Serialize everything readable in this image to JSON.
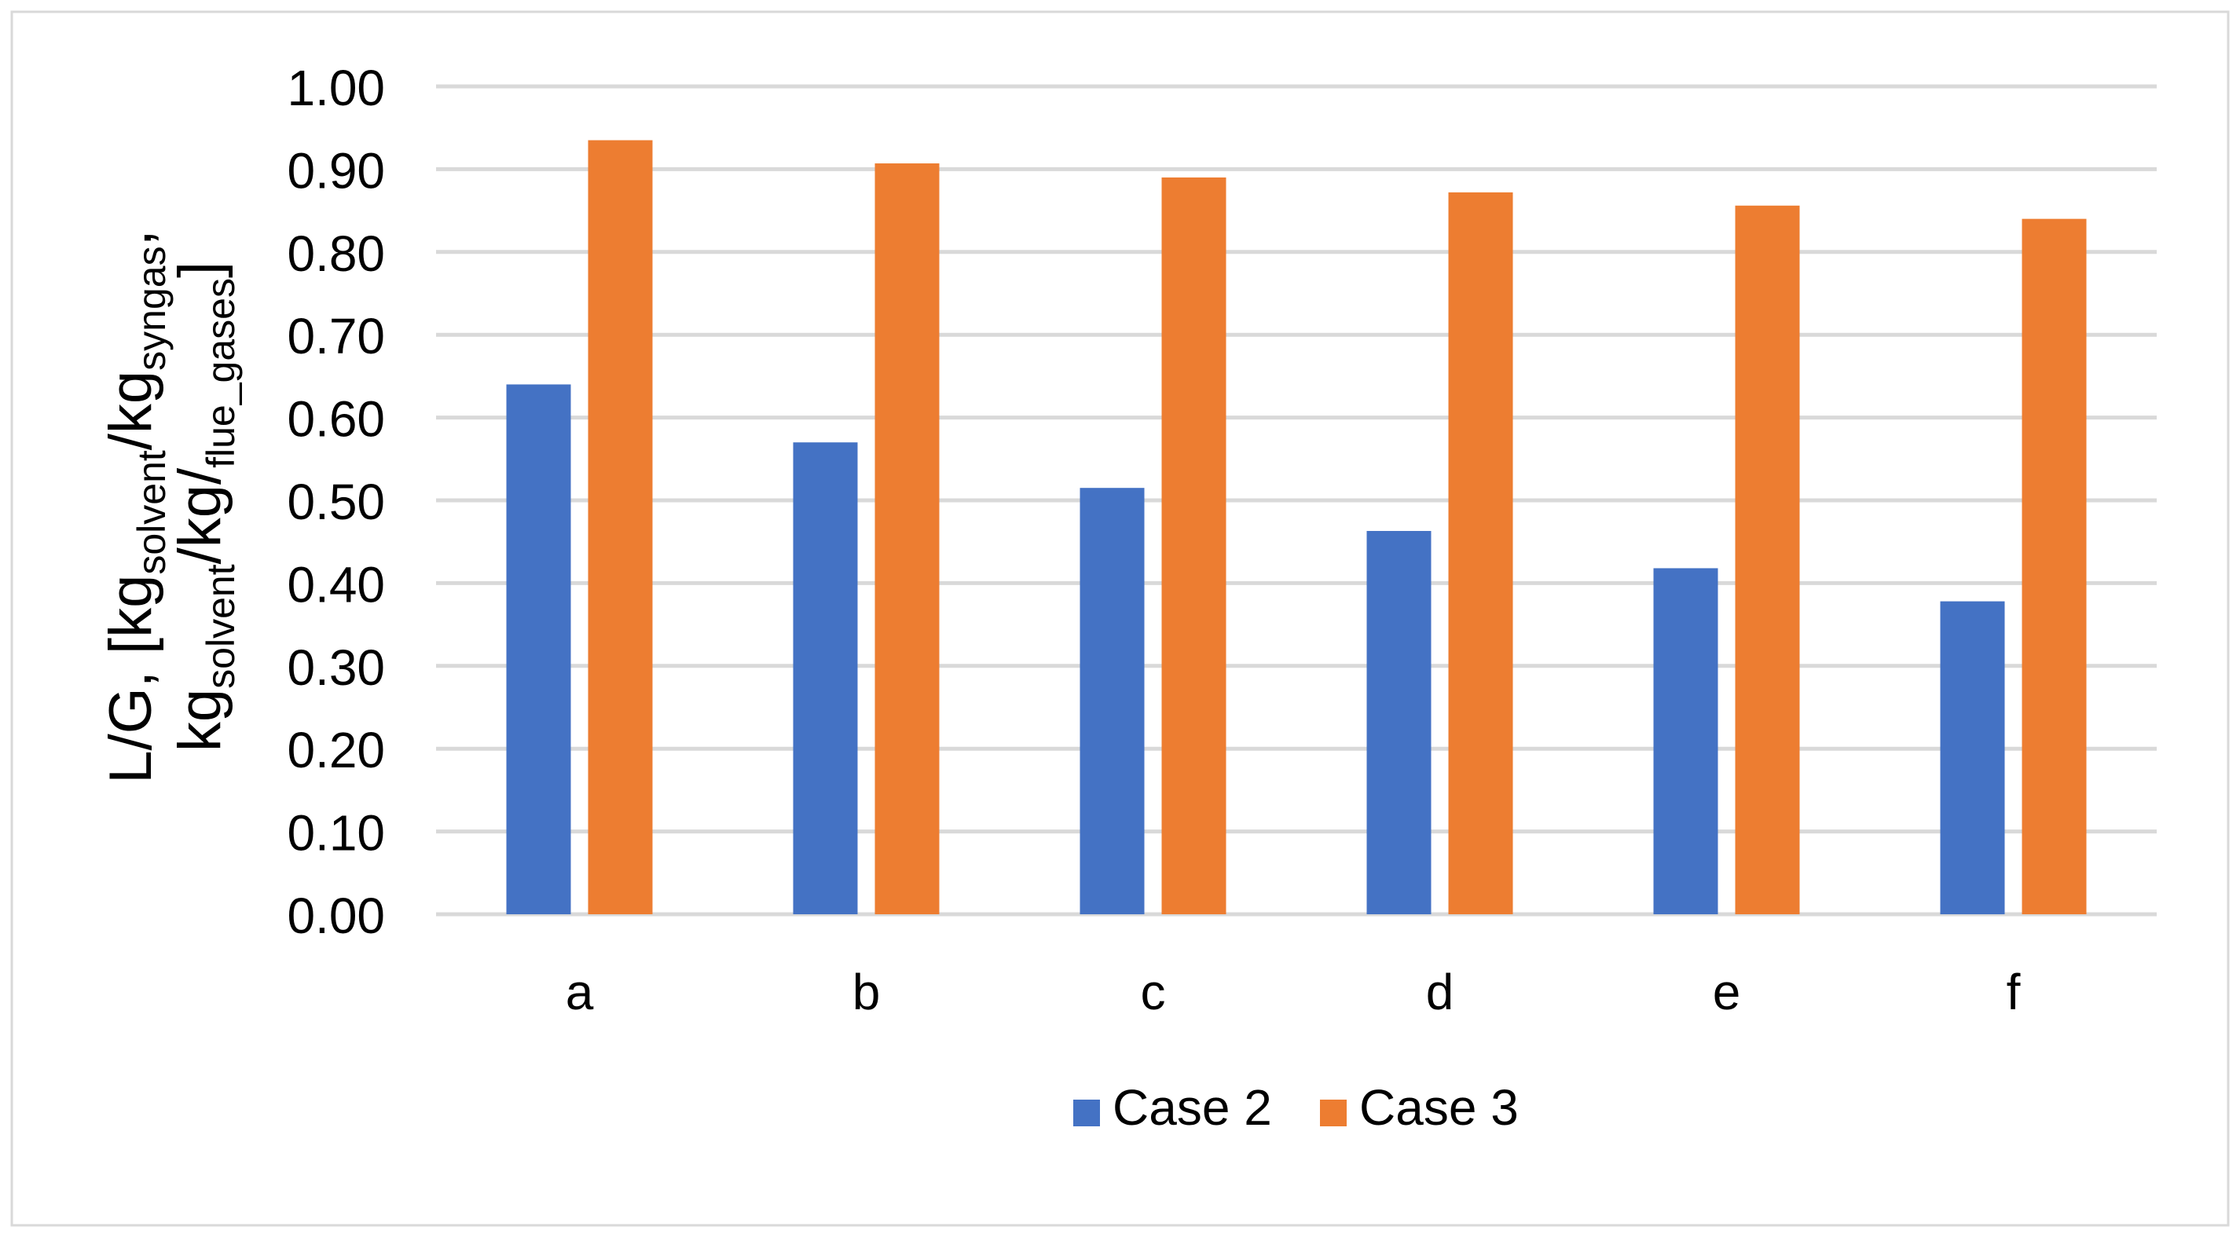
{
  "chart_data": {
    "type": "bar",
    "title": "",
    "categories": [
      "a",
      "b",
      "c",
      "d",
      "e",
      "f"
    ],
    "series": [
      {
        "name": "Case 2",
        "color": "#4472c4",
        "values": [
          0.64,
          0.57,
          0.515,
          0.463,
          0.418,
          0.378
        ]
      },
      {
        "name": "Case 3",
        "color": "#ed7d31",
        "values": [
          0.935,
          0.907,
          0.89,
          0.872,
          0.856,
          0.84
        ]
      }
    ],
    "ylim": [
      0,
      1.0
    ],
    "yticks": [
      "0.00",
      "0.10",
      "0.20",
      "0.30",
      "0.40",
      "0.50",
      "0.60",
      "0.70",
      "0.80",
      "0.90",
      "1.00"
    ],
    "ylabel": {
      "line1_prefix": "L/G, [kg",
      "line1_sub1": "solvent",
      "line1_mid": "/kg",
      "line1_sub2": "syngas",
      "line1_suffix": ",",
      "line2_prefix": "kg",
      "line2_sub1": "solvent",
      "line2_mid": "/kg/",
      "line2_sub2": "flue_gases",
      "line2_suffix": "]"
    },
    "xlabel": "",
    "grid": true,
    "legend_position": "bottom",
    "grid_color": "#d9d9d9",
    "border_color": "#d9d9d9"
  }
}
